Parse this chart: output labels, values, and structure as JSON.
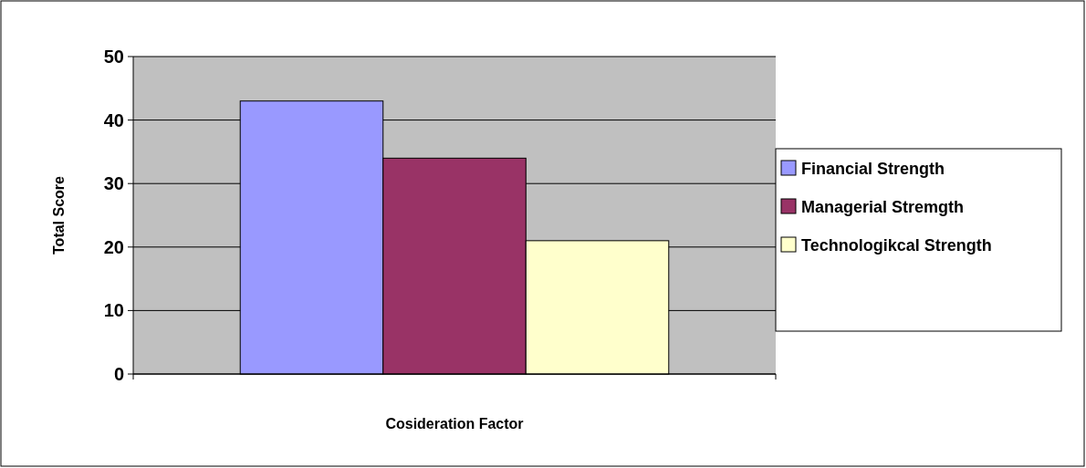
{
  "chart_data": {
    "type": "bar",
    "xlabel": "Cosideration Factor",
    "ylabel": "Total Score",
    "categories": [
      null
    ],
    "series": [
      {
        "name": "Financial Strength",
        "color": "#9999ff",
        "values": [
          43
        ]
      },
      {
        "name": "Managerial Stremgth",
        "color": "#993366",
        "values": [
          34
        ]
      },
      {
        "name": "Technologikcal Strength",
        "color": "#ffffcc",
        "values": [
          21
        ]
      }
    ],
    "ylim": [
      0,
      50
    ],
    "yticks": [
      0,
      10,
      20,
      30,
      40,
      50
    ],
    "grid": "y",
    "legend": "right"
  }
}
